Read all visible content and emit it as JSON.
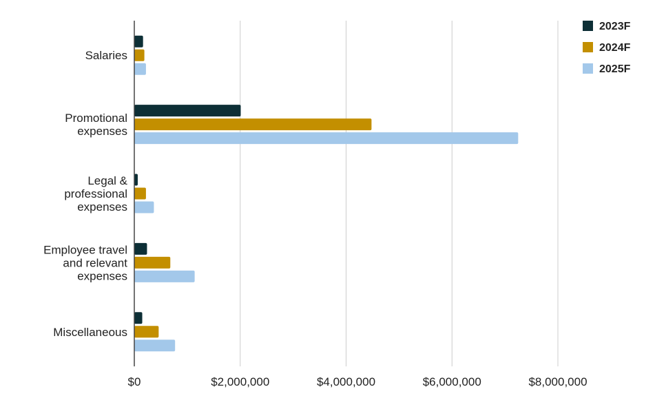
{
  "chart_data": {
    "type": "bar",
    "orientation": "horizontal",
    "categories": [
      [
        "Salaries"
      ],
      [
        "Promotional",
        "expenses"
      ],
      [
        "Legal &",
        "professional",
        "expenses"
      ],
      [
        "Employee travel",
        "and relevant",
        "expenses"
      ],
      [
        "Miscellaneous"
      ]
    ],
    "series": [
      {
        "name": "2023F",
        "color": "#0d2f36",
        "values": [
          165000,
          2010000,
          65000,
          240000,
          150000
        ]
      },
      {
        "name": "2024F",
        "color": "#c38f00",
        "values": [
          190000,
          4480000,
          220000,
          680000,
          460000
        ]
      },
      {
        "name": "2025F",
        "color": "#a3c8ea",
        "values": [
          220000,
          7250000,
          370000,
          1140000,
          770000
        ]
      }
    ],
    "xlim": [
      0,
      8000000
    ],
    "x_ticks": [
      0,
      2000000,
      4000000,
      6000000,
      8000000
    ],
    "x_tick_labels": [
      "$0",
      "$2,000,000",
      "$4,000,000",
      "$6,000,000",
      "$8,000,000"
    ],
    "grid": "vertical",
    "legend_position": "top-right",
    "title": "",
    "xlabel": "",
    "ylabel": ""
  }
}
